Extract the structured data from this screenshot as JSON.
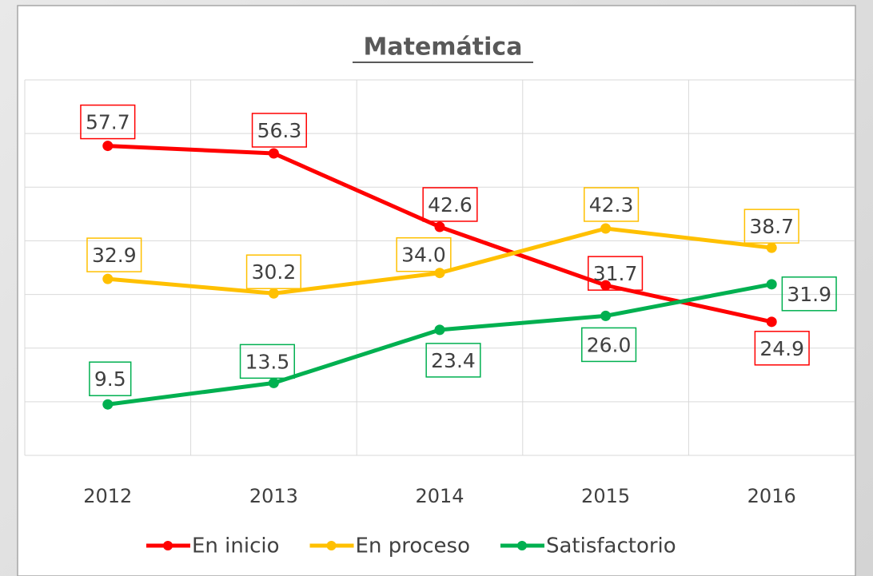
{
  "chart_data": {
    "type": "line",
    "title": "Matemática",
    "categories": [
      "2012",
      "2013",
      "2014",
      "2015",
      "2016"
    ],
    "series": [
      {
        "name": "En inicio",
        "color": "#ff0000",
        "values": [
          57.7,
          56.3,
          42.6,
          31.7,
          24.9
        ],
        "value_labels": [
          "57.7",
          "56.3",
          "42.6",
          "31.7",
          "24.9"
        ]
      },
      {
        "name": "En proceso",
        "color": "#ffc000",
        "values": [
          32.9,
          30.2,
          34.0,
          42.3,
          38.7
        ],
        "value_labels": [
          "32.9",
          "30.2",
          "34.0",
          "42.3",
          "38.7"
        ]
      },
      {
        "name": "Satisfactorio",
        "color": "#00b050",
        "values": [
          9.5,
          13.5,
          23.4,
          26.0,
          31.9
        ],
        "value_labels": [
          "9.5",
          "13.5",
          "23.4",
          "26.0",
          "31.9"
        ]
      }
    ],
    "ylim": [
      0,
      70
    ],
    "yticks": [
      0,
      10,
      20,
      30,
      40,
      50,
      60,
      70
    ],
    "grid": true,
    "legend": "bottom"
  }
}
